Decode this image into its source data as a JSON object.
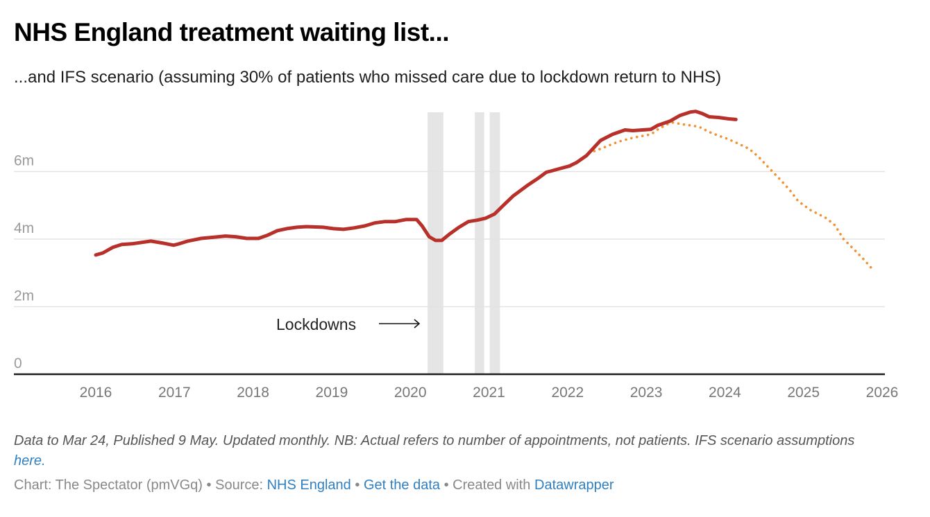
{
  "header": {
    "title": "NHS England treatment waiting list...",
    "subtitle": "...and IFS scenario (assuming 30% of patients who missed care due to lockdown return to NHS)"
  },
  "notes": {
    "text": "Data to Mar 24, Published 9 May. Updated monthly. NB: Actual refers to number of appointments, not patients. IFS scenario assumptions ",
    "link_label": "here."
  },
  "footer": {
    "chart_label": "Chart: The Spectator (pmVGq)",
    "separator": "•",
    "source_prefix": "Source:",
    "source_link": "NHS England",
    "get_data_link": "Get the data",
    "created_prefix": "Created with",
    "created_link": "Datawrapper"
  },
  "colors": {
    "actual": "#b8302a",
    "ifs": "#ef9334",
    "lockdown_band": "#e5e5e5",
    "grid": "#e3e3e3",
    "axis": "#1d1d1d",
    "tick_label": "#777777",
    "link": "#2f7fc1"
  },
  "chart_data": {
    "type": "line",
    "title": "NHS England treatment waiting list...",
    "xlabel": "",
    "ylabel": "",
    "xlim": [
      2015.0,
      2026.1
    ],
    "ylim": [
      0,
      8
    ],
    "y_ticks": [
      0,
      2,
      4,
      6
    ],
    "y_tick_labels": [
      "0",
      "2m",
      "4m",
      "6m"
    ],
    "x_ticks": [
      2016,
      2017,
      2018,
      2019,
      2020,
      2021,
      2022,
      2023,
      2024,
      2025,
      2026
    ],
    "x_tick_labels": [
      "2016",
      "2017",
      "2018",
      "2019",
      "2020",
      "2021",
      "2022",
      "2023",
      "2024",
      "2025",
      "2026"
    ],
    "grid": true,
    "annotations": [
      {
        "text": "Lockdowns",
        "arrow": "right",
        "at_x": 2020.1,
        "at_y": 0.75
      }
    ],
    "shaded_ranges": [
      {
        "name": "Lockdown 1",
        "x": [
          2020.22,
          2020.42
        ]
      },
      {
        "name": "Lockdown 2",
        "x": [
          2020.82,
          2020.94
        ]
      },
      {
        "name": "Lockdown 3",
        "x": [
          2021.01,
          2021.14
        ]
      }
    ],
    "series": [
      {
        "name": "Actual",
        "style": "solid",
        "x": [
          2016.0,
          2016.09,
          2016.22,
          2016.33,
          2016.46,
          2016.64,
          2016.7,
          2016.86,
          2016.99,
          2017.06,
          2017.17,
          2017.34,
          2017.56,
          2017.65,
          2017.78,
          2017.92,
          2018.07,
          2018.18,
          2018.31,
          2018.43,
          2018.56,
          2018.68,
          2018.89,
          2019.02,
          2019.15,
          2019.28,
          2019.42,
          2019.55,
          2019.68,
          2019.81,
          2019.95,
          2020.08,
          2020.15,
          2020.24,
          2020.32,
          2020.4,
          2020.5,
          2020.62,
          2020.74,
          2020.85,
          2020.96,
          2021.07,
          2021.18,
          2021.31,
          2021.49,
          2021.62,
          2021.73,
          2021.8,
          2021.89,
          2022.02,
          2022.11,
          2022.24,
          2022.42,
          2022.57,
          2022.73,
          2022.83,
          2023.06,
          2023.15,
          2023.3,
          2023.43,
          2023.56,
          2023.63,
          2023.71,
          2023.8,
          2023.92,
          2024.05,
          2024.14
        ],
        "values": [
          3.53,
          3.59,
          3.76,
          3.84,
          3.86,
          3.92,
          3.94,
          3.88,
          3.82,
          3.86,
          3.94,
          4.02,
          4.07,
          4.09,
          4.07,
          4.02,
          4.02,
          4.11,
          4.25,
          4.31,
          4.35,
          4.37,
          4.35,
          4.31,
          4.29,
          4.33,
          4.39,
          4.48,
          4.52,
          4.52,
          4.58,
          4.58,
          4.39,
          4.07,
          3.96,
          3.96,
          4.15,
          4.35,
          4.52,
          4.56,
          4.62,
          4.74,
          4.99,
          5.28,
          5.59,
          5.79,
          5.98,
          6.02,
          6.08,
          6.16,
          6.26,
          6.47,
          6.92,
          7.1,
          7.23,
          7.21,
          7.25,
          7.37,
          7.49,
          7.66,
          7.76,
          7.78,
          7.72,
          7.62,
          7.6,
          7.56,
          7.54
        ]
      },
      {
        "name": "IFS scenario",
        "style": "dotted",
        "x": [
          2022.04,
          2022.28,
          2022.46,
          2022.64,
          2022.83,
          2023.06,
          2023.15,
          2023.26,
          2023.34,
          2023.48,
          2023.61,
          2023.71,
          2023.78,
          2023.92,
          2024.02,
          2024.16,
          2024.31,
          2024.43,
          2024.58,
          2024.71,
          2024.83,
          2024.93,
          2025.08,
          2025.29,
          2025.4,
          2025.51,
          2025.64,
          2025.77,
          2025.88
        ],
        "values": [
          6.16,
          6.55,
          6.71,
          6.88,
          7.0,
          7.1,
          7.25,
          7.39,
          7.45,
          7.39,
          7.35,
          7.29,
          7.19,
          7.06,
          6.98,
          6.84,
          6.67,
          6.43,
          6.06,
          5.75,
          5.44,
          5.13,
          4.87,
          4.62,
          4.41,
          4.0,
          3.7,
          3.39,
          3.1
        ]
      }
    ]
  }
}
